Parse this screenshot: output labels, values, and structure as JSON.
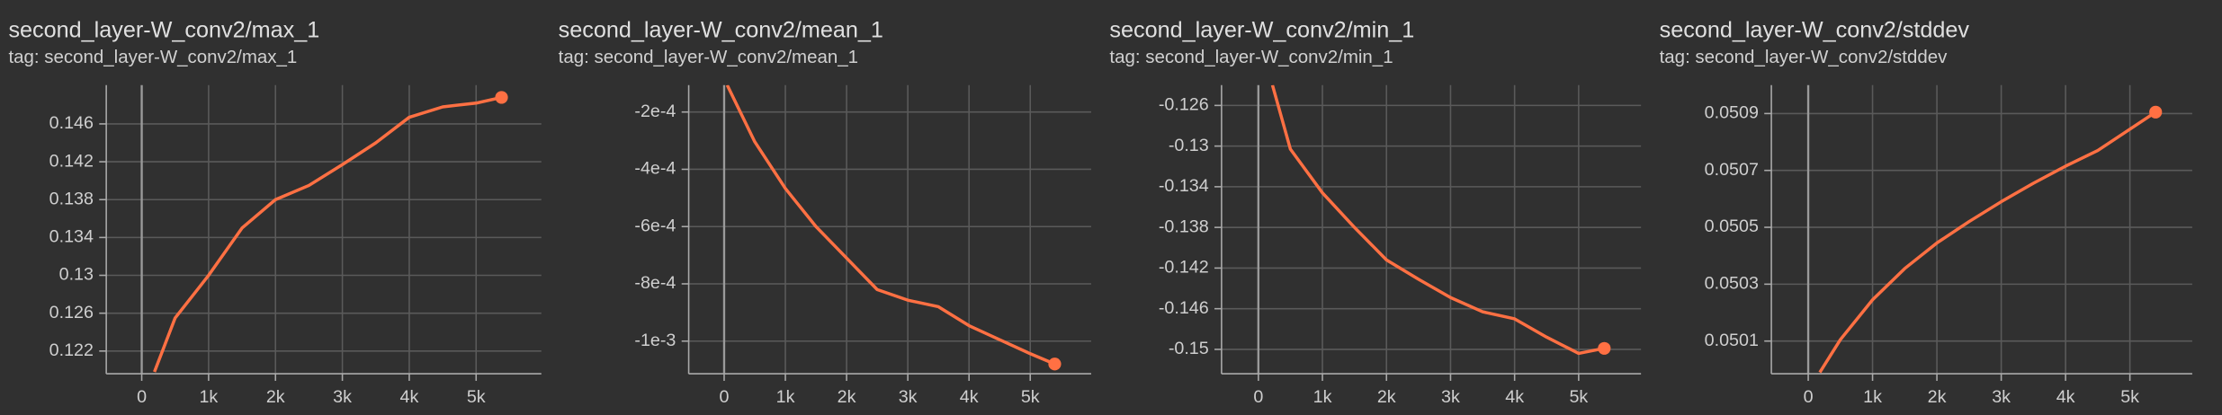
{
  "chart_data": [
    {
      "type": "line",
      "title": "second_layer-W_conv2/max_1",
      "subtitle": "tag: second_layer-W_conv2/max_1",
      "color": "#ff7043",
      "grid": true,
      "x": [
        190,
        500,
        1000,
        1500,
        2000,
        2500,
        3000,
        3500,
        4000,
        4500,
        5000,
        5380
      ],
      "values": [
        0.1198,
        0.1255,
        0.13,
        0.135,
        0.138,
        0.1395,
        0.1417,
        0.144,
        0.1467,
        0.1478,
        0.1482,
        0.1488
      ],
      "xlim": [
        -530,
        5975
      ],
      "ylim": [
        0.1196,
        0.1501
      ],
      "xticks": [
        0,
        {
          "value": 1000,
          "label": "1k"
        },
        {
          "value": 2000,
          "label": "2k"
        },
        {
          "value": 3000,
          "label": "3k"
        },
        {
          "value": 4000,
          "label": "4k"
        },
        {
          "value": 5000,
          "label": "5k"
        }
      ],
      "yticks": [
        0.122,
        0.126,
        0.13,
        0.134,
        0.138,
        0.142,
        0.146
      ]
    },
    {
      "type": "line",
      "title": "second_layer-W_conv2/mean_1",
      "subtitle": "tag: second_layer-W_conv2/mean_1",
      "color": "#ff7043",
      "grid": true,
      "x": [
        50,
        500,
        1000,
        1500,
        2000,
        2500,
        3000,
        3500,
        4000,
        4500,
        5000,
        5400
      ],
      "values": [
        -0.000106,
        -0.000304,
        -0.000467,
        -0.0006,
        -0.00071,
        -0.00082,
        -0.000857,
        -0.00088,
        -0.000946,
        -0.000995,
        -0.001044,
        -0.00108
      ],
      "xlim": [
        -579,
        5995
      ],
      "ylim": [
        -0.001114,
        -0.000106
      ],
      "xticks": [
        0,
        {
          "value": 1000,
          "label": "1k"
        },
        {
          "value": 2000,
          "label": "2k"
        },
        {
          "value": 3000,
          "label": "3k"
        },
        {
          "value": 4000,
          "label": "4k"
        },
        {
          "value": 5000,
          "label": "5k"
        }
      ],
      "yticks": [
        {
          "value": -0.001,
          "label": "-1e-3"
        },
        {
          "value": -0.0008,
          "label": "-8e-4"
        },
        {
          "value": -0.0006,
          "label": "-6e-4"
        },
        {
          "value": -0.0004,
          "label": "-4e-4"
        },
        {
          "value": -0.0002,
          "label": "-2e-4"
        }
      ]
    },
    {
      "type": "line",
      "title": "second_layer-W_conv2/min_1",
      "subtitle": "tag: second_layer-W_conv2/min_1",
      "color": "#ff7043",
      "grid": true,
      "x": [
        220,
        500,
        1000,
        1500,
        2000,
        2500,
        3000,
        3500,
        4000,
        4500,
        5000,
        5400
      ],
      "values": [
        -0.124,
        -0.1303,
        -0.1346,
        -0.138,
        -0.1412,
        -0.1431,
        -0.1449,
        -0.1463,
        -0.147,
        -0.1488,
        -0.1504,
        -0.1499
      ],
      "xlim": [
        -575,
        5973
      ],
      "ylim": [
        -0.1524,
        -0.124
      ],
      "xticks": [
        0,
        {
          "value": 1000,
          "label": "1k"
        },
        {
          "value": 2000,
          "label": "2k"
        },
        {
          "value": 3000,
          "label": "3k"
        },
        {
          "value": 4000,
          "label": "4k"
        },
        {
          "value": 5000,
          "label": "5k"
        }
      ],
      "yticks": [
        -0.15,
        -0.146,
        -0.142,
        -0.138,
        -0.134,
        -0.13,
        -0.126
      ]
    },
    {
      "type": "line",
      "title": "second_layer-W_conv2/stddev",
      "subtitle": "tag: second_layer-W_conv2/stddev",
      "color": "#ff7043",
      "grid": true,
      "x": [
        180,
        500,
        1000,
        1500,
        2000,
        2500,
        3000,
        3500,
        4000,
        4500,
        5000,
        5400
      ],
      "values": [
        0.04999,
        0.050105,
        0.050245,
        0.050355,
        0.050445,
        0.05052,
        0.05059,
        0.050655,
        0.050715,
        0.05077,
        0.050845,
        0.050905
      ],
      "xlim": [
        -573,
        5969
      ],
      "ylim": [
        0.049985,
        0.051
      ],
      "xticks": [
        0,
        {
          "value": 1000,
          "label": "1k"
        },
        {
          "value": 2000,
          "label": "2k"
        },
        {
          "value": 3000,
          "label": "3k"
        },
        {
          "value": 4000,
          "label": "4k"
        },
        {
          "value": 5000,
          "label": "5k"
        }
      ],
      "yticks": [
        0.0501,
        0.0503,
        0.0505,
        0.0507,
        0.0509
      ]
    }
  ]
}
